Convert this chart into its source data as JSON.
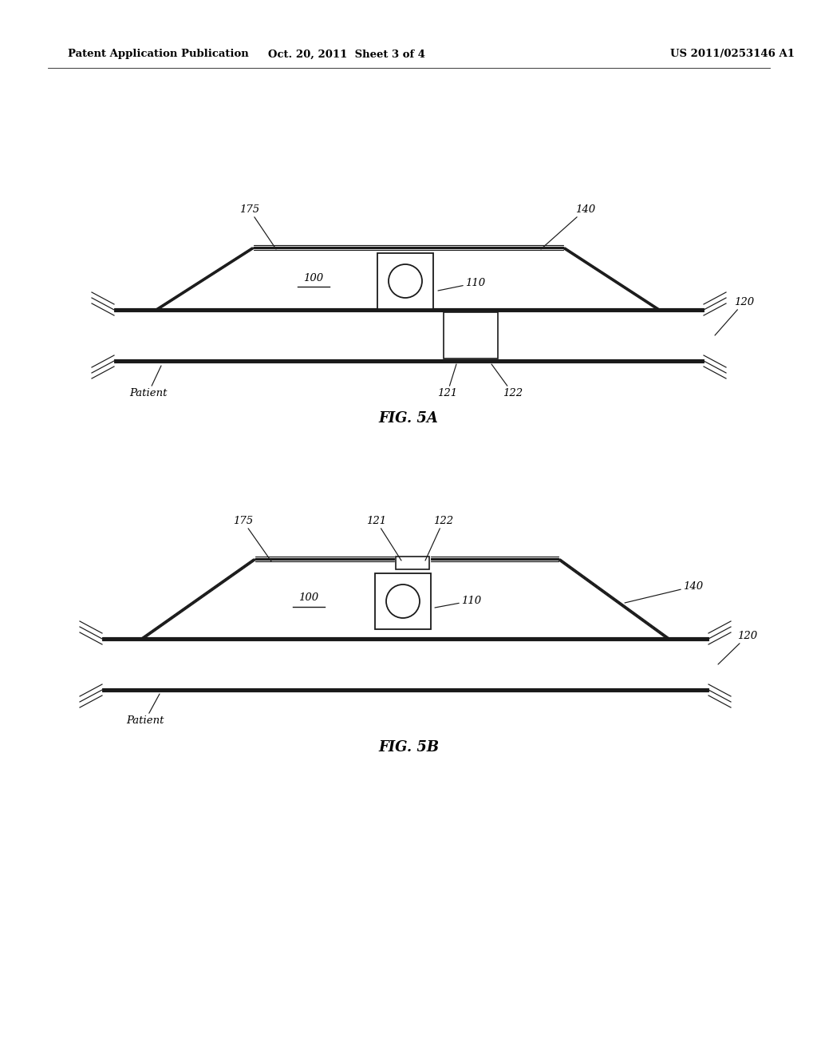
{
  "bg_color": "#ffffff",
  "line_color": "#1a1a1a",
  "header_left": "Patent Application Publication",
  "header_mid": "Oct. 20, 2011  Sheet 3 of 4",
  "header_right": "US 2011/0253146 A1",
  "fig5a_title": "FIG. 5A",
  "fig5b_title": "FIG. 5B"
}
